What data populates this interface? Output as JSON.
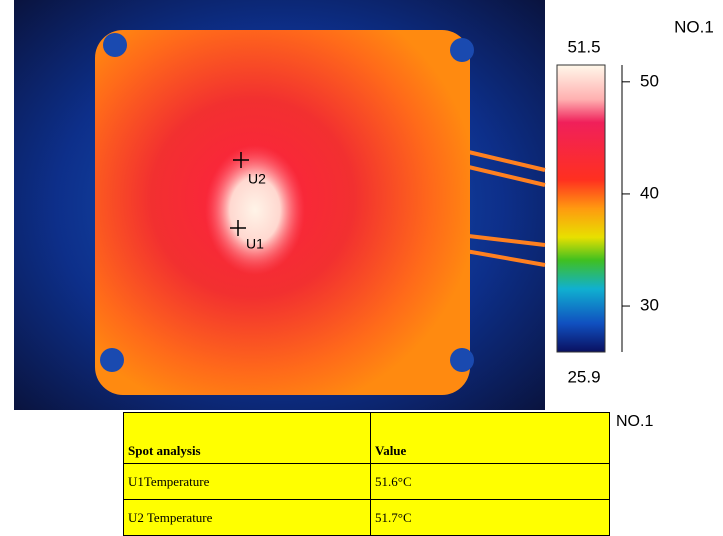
{
  "thermal_image": {
    "spots": [
      {
        "label": "U2"
      },
      {
        "label": "U1"
      }
    ]
  },
  "scale": {
    "title": "NO.1",
    "max": 51.5,
    "min": 25.9,
    "ticks": [
      30,
      40,
      50
    ]
  },
  "table": {
    "title": "NO.1",
    "header": [
      "Spot analysis",
      "Value"
    ],
    "rows": [
      [
        "U1Temperature",
        "51.6°C"
      ],
      [
        "U2 Temperature",
        "51.7°C"
      ]
    ]
  }
}
